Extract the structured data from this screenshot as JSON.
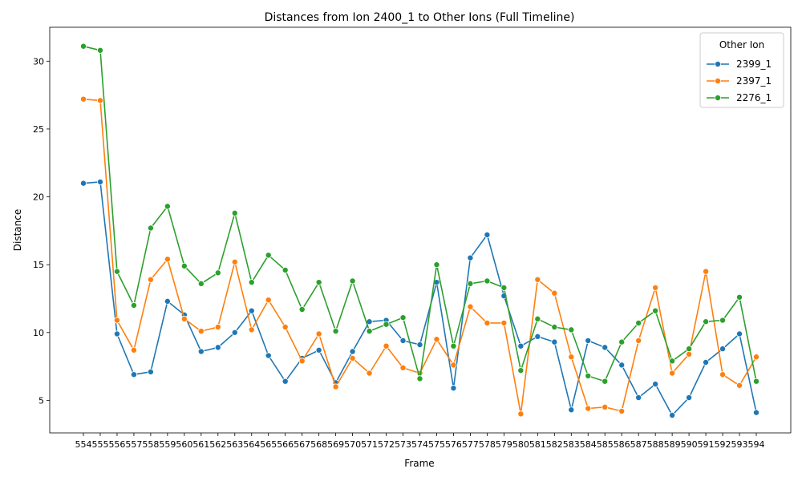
{
  "chart_data": {
    "type": "line",
    "title": "Distances from Ion 2400_1 to Other Ions (Full Timeline)",
    "xlabel": "Frame",
    "ylabel": "Distance",
    "x": [
      554,
      555,
      556,
      557,
      558,
      559,
      560,
      561,
      562,
      563,
      564,
      565,
      566,
      567,
      568,
      569,
      570,
      571,
      572,
      573,
      574,
      575,
      576,
      577,
      578,
      579,
      580,
      581,
      582,
      583,
      584,
      585,
      586,
      587,
      588,
      589,
      590,
      591,
      592,
      593,
      594
    ],
    "y_ticks": [
      5,
      10,
      15,
      20,
      25,
      30
    ],
    "ylim": [
      2.6,
      32.5
    ],
    "grid": false,
    "legend": {
      "title": "Other Ion",
      "position": "top-right"
    },
    "series": [
      {
        "name": "2399_1",
        "color": "#1f77b4",
        "values": [
          21.0,
          21.1,
          9.9,
          6.9,
          7.1,
          12.3,
          11.3,
          8.6,
          8.9,
          10.0,
          11.6,
          8.3,
          6.4,
          8.1,
          8.7,
          6.3,
          8.6,
          10.8,
          10.9,
          9.4,
          9.1,
          13.7,
          5.9,
          15.5,
          17.2,
          12.7,
          9.0,
          9.7,
          9.3,
          4.3,
          9.4,
          8.9,
          7.6,
          5.2,
          6.2,
          3.9,
          5.2,
          7.8,
          8.8,
          9.9,
          4.1
        ]
      },
      {
        "name": "2397_1",
        "color": "#ff7f0e",
        "values": [
          27.2,
          27.1,
          10.9,
          8.7,
          13.9,
          15.4,
          11.0,
          10.1,
          10.4,
          15.2,
          10.2,
          12.4,
          10.4,
          7.9,
          9.9,
          6.0,
          8.1,
          7.0,
          9.0,
          7.4,
          7.0,
          9.5,
          7.6,
          11.9,
          10.7,
          10.7,
          4.0,
          13.9,
          12.9,
          8.2,
          4.4,
          4.5,
          4.2,
          9.4,
          13.3,
          7.0,
          8.4,
          14.5,
          6.9,
          6.1,
          8.2
        ]
      },
      {
        "name": "2276_1",
        "color": "#2ca02c",
        "values": [
          31.1,
          30.8,
          14.5,
          12.0,
          17.7,
          19.3,
          14.9,
          13.6,
          14.4,
          18.8,
          13.7,
          15.7,
          14.6,
          11.7,
          13.7,
          10.1,
          13.8,
          10.1,
          10.6,
          11.1,
          6.6,
          15.0,
          9.0,
          13.6,
          13.8,
          13.3,
          7.2,
          11.0,
          10.4,
          10.2,
          6.8,
          6.4,
          9.3,
          10.7,
          11.6,
          7.9,
          8.8,
          10.8,
          10.9,
          12.6,
          6.4
        ]
      }
    ]
  }
}
